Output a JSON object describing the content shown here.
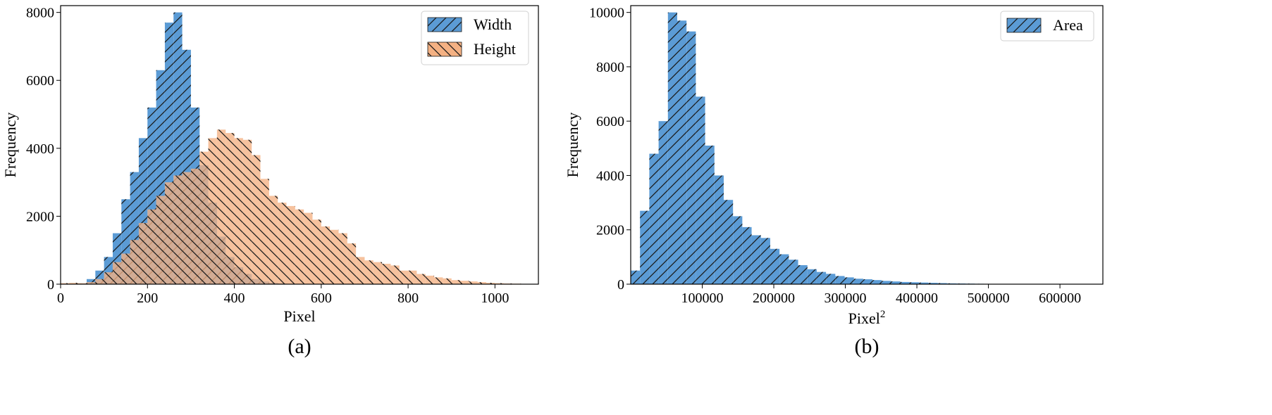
{
  "chart_data": [
    {
      "type": "histogram",
      "caption": "(a)",
      "xlabel": "Pixel",
      "ylabel": "Frequency",
      "xlim": [
        0,
        1100
      ],
      "ylim": [
        0,
        8200
      ],
      "xticks": [
        0,
        200,
        400,
        600,
        800,
        1000
      ],
      "xtick_labels": [
        "0",
        "200",
        "400",
        "600",
        "800",
        "1000"
      ],
      "yticks": [
        0,
        2000,
        4000,
        6000,
        8000
      ],
      "ytick_labels": [
        "0",
        "2000",
        "4000",
        "6000",
        "8000"
      ],
      "legend_position": "top-right",
      "series": [
        {
          "name": "Width",
          "color": "#5b9bd5",
          "hatch": "forward",
          "bin_start": 0,
          "bin_width": 20,
          "values": [
            0,
            0,
            20,
            150,
            400,
            800,
            1500,
            2500,
            3300,
            4300,
            5200,
            6300,
            7700,
            8000,
            6900,
            5200,
            3500,
            2400,
            1400,
            800,
            500,
            300,
            150,
            80,
            40,
            20,
            10,
            5,
            0,
            0,
            0,
            0,
            0,
            0,
            0,
            0,
            0,
            0,
            0,
            0,
            0,
            0,
            0,
            0,
            0,
            0,
            0,
            0,
            0,
            0,
            0,
            0,
            0,
            0,
            0
          ]
        },
        {
          "name": "Height",
          "color": "#f4b183",
          "hatch": "backward",
          "bin_start": 0,
          "bin_width": 20,
          "values": [
            30,
            40,
            30,
            60,
            150,
            350,
            650,
            900,
            1300,
            1800,
            2200,
            2600,
            3000,
            3200,
            3300,
            3400,
            3900,
            4300,
            4550,
            4450,
            4300,
            4250,
            3800,
            3100,
            2600,
            2400,
            2300,
            2200,
            2100,
            1900,
            1700,
            1600,
            1500,
            1200,
            800,
            700,
            650,
            600,
            550,
            400,
            400,
            300,
            250,
            200,
            170,
            120,
            100,
            80,
            60,
            40,
            30,
            20,
            15,
            10,
            5
          ]
        }
      ]
    },
    {
      "type": "histogram",
      "caption": "(b)",
      "xlabel": "Pixel",
      "xlabel_superscript": "2",
      "ylabel": "Frequency",
      "xlim": [
        0,
        660000
      ],
      "ylim": [
        0,
        10250
      ],
      "xticks": [
        100000,
        200000,
        300000,
        400000,
        500000,
        600000
      ],
      "xtick_labels": [
        "100000",
        "200000",
        "300000",
        "400000",
        "500000",
        "600000"
      ],
      "yticks": [
        0,
        2000,
        4000,
        6000,
        8000,
        10000
      ],
      "ytick_labels": [
        "0",
        "2000",
        "4000",
        "6000",
        "8000",
        "10000"
      ],
      "legend_position": "top-right",
      "series": [
        {
          "name": "Area",
          "color": "#5b9bd5",
          "hatch": "forward",
          "bin_start": 0,
          "bin_width": 13000,
          "values": [
            500,
            2700,
            4800,
            6000,
            10000,
            9700,
            9300,
            6900,
            5100,
            4000,
            3100,
            2500,
            2100,
            1800,
            1700,
            1300,
            1100,
            900,
            700,
            550,
            450,
            380,
            300,
            250,
            200,
            180,
            150,
            120,
            100,
            80,
            70,
            60,
            50,
            40,
            30,
            25,
            20,
            15,
            12,
            10,
            8,
            6,
            5,
            4,
            3,
            3,
            2,
            2,
            2,
            2
          ]
        }
      ]
    }
  ]
}
